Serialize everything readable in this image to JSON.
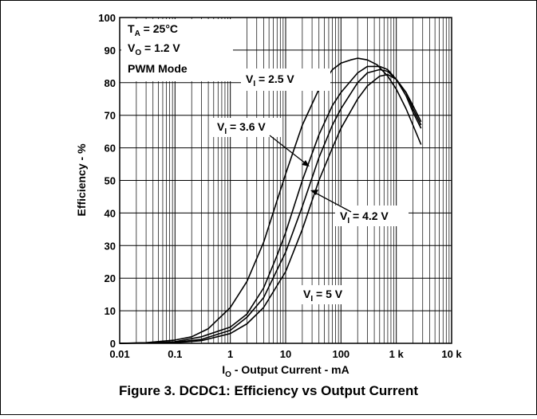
{
  "figure_caption": "Figure 3. DCDC1: Efficiency vs Output Current",
  "conditions": {
    "ta": {
      "main": "T",
      "sub": "A",
      "rest": " = 25°C"
    },
    "vo": {
      "main": "V",
      "sub": "O",
      "rest": " = 1.2 V"
    },
    "mode": "PWM Mode"
  },
  "axes": {
    "x": {
      "main": "I",
      "sub": "O",
      "rest": " - Output Current - mA"
    },
    "y": "Efficiency - %"
  },
  "chart_data": {
    "type": "line",
    "title": "",
    "xscale": "log",
    "xlim": [
      0.01,
      10000
    ],
    "ylim": [
      0,
      100
    ],
    "grid": true,
    "x_ticks": [
      {
        "value": 0.01,
        "label": "0.01"
      },
      {
        "value": 0.1,
        "label": "0.1"
      },
      {
        "value": 1,
        "label": "1"
      },
      {
        "value": 10,
        "label": "10"
      },
      {
        "value": 100,
        "label": "100"
      },
      {
        "value": 1000,
        "label": "1 k"
      },
      {
        "value": 10000,
        "label": "10 k"
      }
    ],
    "y_ticks": [
      0,
      10,
      20,
      30,
      40,
      50,
      60,
      70,
      80,
      90,
      100
    ],
    "series": [
      {
        "name": "VI = 2.5 V",
        "label": {
          "main": "V",
          "sub": "I",
          "rest": " = 2.5 V"
        },
        "x": [
          0.01,
          0.03,
          0.1,
          0.2,
          0.4,
          1,
          2,
          4,
          10,
          20,
          40,
          70,
          100,
          150,
          200,
          300,
          450,
          700,
          1000,
          1500,
          2000,
          2800
        ],
        "y": [
          0,
          0.2,
          1,
          2,
          4.5,
          11,
          19,
          31,
          52,
          67,
          78,
          84,
          86,
          87,
          87.5,
          87,
          85.5,
          82,
          78,
          72,
          67,
          61
        ]
      },
      {
        "name": "VI = 3.6 V",
        "label": {
          "main": "V",
          "sub": "I",
          "rest": " = 3.6 V"
        },
        "x": [
          0.01,
          0.03,
          0.1,
          0.3,
          1,
          2,
          4,
          7,
          10,
          20,
          40,
          70,
          100,
          200,
          300,
          500,
          700,
          1000,
          1500,
          2000,
          2800
        ],
        "y": [
          0,
          0.1,
          0.5,
          2,
          5,
          9,
          17,
          27,
          34,
          50,
          64,
          73,
          77,
          83,
          85,
          85,
          84,
          81,
          76,
          71,
          66
        ]
      },
      {
        "name": "VI = 4.2 V",
        "label": {
          "main": "V",
          "sub": "I",
          "rest": " = 4.2 V"
        },
        "x": [
          0.01,
          0.1,
          0.3,
          1,
          2,
          4,
          10,
          20,
          40,
          70,
          100,
          200,
          300,
          500,
          700,
          1000,
          1500,
          2000,
          2800
        ],
        "y": [
          0,
          0.3,
          1.2,
          4,
          8,
          14,
          28,
          42,
          57,
          67,
          72,
          80,
          83,
          84,
          83.5,
          81,
          77,
          72,
          67
        ]
      },
      {
        "name": "VI = 5 V",
        "label": {
          "main": "V",
          "sub": "I",
          "rest": " = 5 V"
        },
        "x": [
          0.01,
          0.1,
          0.3,
          1,
          2,
          4,
          10,
          20,
          40,
          70,
          100,
          200,
          300,
          500,
          700,
          1000,
          1500,
          2000,
          2800
        ],
        "y": [
          0,
          0.2,
          0.8,
          3,
          6,
          11,
          22,
          35,
          50,
          60,
          66,
          75,
          79,
          82,
          82.5,
          81,
          77,
          73,
          68
        ]
      }
    ],
    "annotations": [
      "VI = 2.5 V",
      "VI = 3.6 V",
      "VI = 4.2 V",
      "VI = 5 V"
    ]
  }
}
